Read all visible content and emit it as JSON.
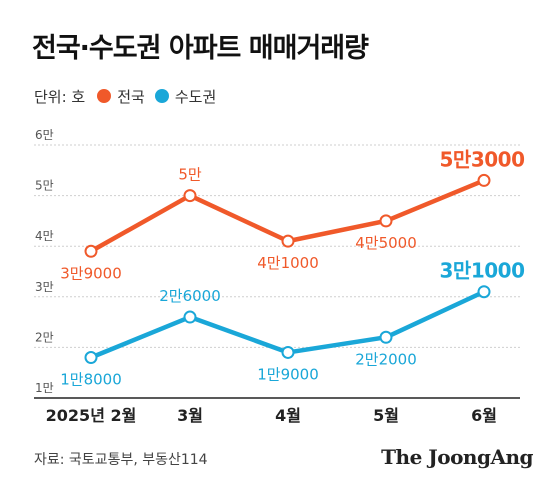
{
  "title": "전국·수도권 아파트 매매거래량",
  "legend": {
    "unit": "단위: 호",
    "items": [
      {
        "label": "전국",
        "color": "#f0592a"
      },
      {
        "label": "수도권",
        "color": "#1aa7d8"
      }
    ]
  },
  "source": "자료: 국토교통부, 부동산114",
  "brand": "The JoongAng",
  "chart_data": {
    "type": "line",
    "title": "전국·수도권 아파트 매매거래량",
    "xlabel": "",
    "ylabel": "단위: 호",
    "categories": [
      "2025년 2월",
      "3월",
      "4월",
      "5월",
      "6월"
    ],
    "ylim": [
      10000,
      60000
    ],
    "yticks": [
      10000,
      20000,
      30000,
      40000,
      50000,
      60000
    ],
    "ytick_labels": [
      "1만",
      "2만",
      "3만",
      "4만",
      "5만",
      "6만"
    ],
    "grid": true,
    "legend_position": "top-left",
    "series": [
      {
        "name": "전국",
        "color": "#f0592a",
        "values": [
          39000,
          50000,
          41000,
          45000,
          53000
        ],
        "labels": [
          "3만9000",
          "5만",
          "4만1000",
          "4만5000",
          "5만3000"
        ],
        "label_positions": [
          "below",
          "above",
          "below",
          "below",
          "above"
        ],
        "emphasize_last": true
      },
      {
        "name": "수도권",
        "color": "#1aa7d8",
        "values": [
          18000,
          26000,
          19000,
          22000,
          31000
        ],
        "labels": [
          "1만8000",
          "2만6000",
          "1만9000",
          "2만2000",
          "3만1000"
        ],
        "label_positions": [
          "below",
          "above",
          "below",
          "below",
          "above"
        ],
        "emphasize_last": true
      }
    ]
  }
}
